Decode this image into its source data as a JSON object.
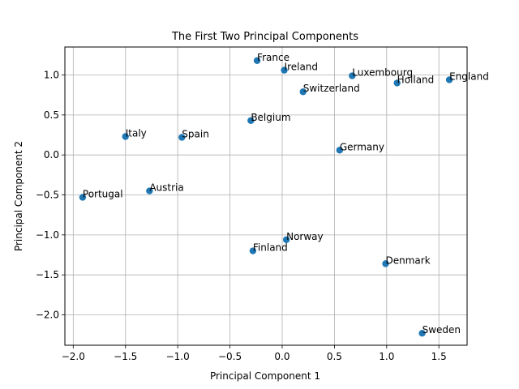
{
  "chart_data": {
    "type": "scatter",
    "title": "The First Two Principal Components",
    "xlabel": "Principal Component 1",
    "ylabel": "Principal Component 2",
    "xlim": [
      -2.08,
      1.77
    ],
    "ylim": [
      -2.38,
      1.35
    ],
    "xticks": [
      -2.0,
      -1.5,
      -1.0,
      -0.5,
      0.0,
      0.5,
      1.0,
      1.5
    ],
    "xtick_labels": [
      "−2.0",
      "−1.5",
      "−1.0",
      "−0.5",
      "0.0",
      "0.5",
      "1.0",
      "1.5"
    ],
    "yticks": [
      -2.0,
      -1.5,
      -1.0,
      -0.5,
      0.0,
      0.5,
      1.0
    ],
    "ytick_labels": [
      "−2.0",
      "−1.5",
      "−1.0",
      "−0.5",
      "0.0",
      "0.5",
      "1.0"
    ],
    "grid": true,
    "marker_color": "#1f77b4",
    "points": [
      {
        "label": "France",
        "x": -0.24,
        "y": 1.18
      },
      {
        "label": "Ireland",
        "x": 0.02,
        "y": 1.06
      },
      {
        "label": "Luxembourg",
        "x": 0.67,
        "y": 0.99
      },
      {
        "label": "Holland",
        "x": 1.1,
        "y": 0.9
      },
      {
        "label": "England",
        "x": 1.6,
        "y": 0.94
      },
      {
        "label": "Switzerland",
        "x": 0.2,
        "y": 0.79
      },
      {
        "label": "Belgium",
        "x": -0.3,
        "y": 0.43
      },
      {
        "label": "Italy",
        "x": -1.5,
        "y": 0.23
      },
      {
        "label": "Spain",
        "x": -0.96,
        "y": 0.22
      },
      {
        "label": "Germany",
        "x": 0.55,
        "y": 0.06
      },
      {
        "label": "Austria",
        "x": -1.27,
        "y": -0.45
      },
      {
        "label": "Portugal",
        "x": -1.91,
        "y": -0.53
      },
      {
        "label": "Norway",
        "x": 0.04,
        "y": -1.06
      },
      {
        "label": "Finland",
        "x": -0.28,
        "y": -1.2
      },
      {
        "label": "Denmark",
        "x": 0.99,
        "y": -1.36
      },
      {
        "label": "Sweden",
        "x": 1.34,
        "y": -2.23
      }
    ]
  }
}
